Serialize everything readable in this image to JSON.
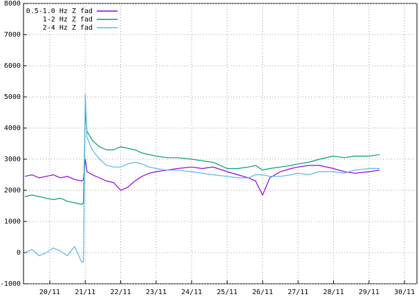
{
  "chart_data": {
    "type": "line",
    "x": [
      19.3,
      19.5,
      19.7,
      19.9,
      20.1,
      20.3,
      20.5,
      20.7,
      20.9,
      20.95,
      21.0,
      21.05,
      21.2,
      21.4,
      21.6,
      21.8,
      22.0,
      22.2,
      22.4,
      22.6,
      22.8,
      23.0,
      23.3,
      23.6,
      24.0,
      24.3,
      24.6,
      25.0,
      25.3,
      25.6,
      25.8,
      26.0,
      26.2,
      26.5,
      26.8,
      27.0,
      27.3,
      27.6,
      28.0,
      28.3,
      28.6,
      29.0,
      29.3
    ],
    "series": [
      {
        "name": "0.5-1.0 Hz Z fad",
        "color": "#9400d3",
        "values": [
          2450,
          2500,
          2400,
          2450,
          2500,
          2400,
          2450,
          2350,
          2300,
          2350,
          3000,
          2600,
          2500,
          2400,
          2300,
          2250,
          2000,
          2100,
          2300,
          2450,
          2550,
          2600,
          2650,
          2700,
          2750,
          2700,
          2750,
          2600,
          2500,
          2400,
          2300,
          1850,
          2400,
          2600,
          2700,
          2750,
          2800,
          2800,
          2700,
          2600,
          2550,
          2600,
          2650
        ]
      },
      {
        "name": "1-2 Hz Z fad",
        "color": "#009e73",
        "values": [
          1800,
          1850,
          1800,
          1750,
          1700,
          1750,
          1650,
          1600,
          1550,
          1600,
          4500,
          3900,
          3600,
          3400,
          3300,
          3300,
          3400,
          3350,
          3300,
          3200,
          3150,
          3100,
          3050,
          3050,
          3000,
          2950,
          2900,
          2700,
          2700,
          2750,
          2800,
          2650,
          2700,
          2750,
          2800,
          2850,
          2900,
          3000,
          3100,
          3050,
          3100,
          3100,
          3150
        ]
      },
      {
        "name": "2-4 Hz Z fad",
        "color": "#56b4e9",
        "values": [
          0,
          100,
          -100,
          0,
          150,
          50,
          -100,
          200,
          -300,
          -300,
          5100,
          3700,
          3300,
          3000,
          2800,
          2750,
          2750,
          2850,
          2900,
          2850,
          2750,
          2700,
          2650,
          2650,
          2600,
          2550,
          2500,
          2450,
          2400,
          2400,
          2500,
          2500,
          2450,
          2450,
          2500,
          2550,
          2500,
          2600,
          2600,
          2550,
          2650,
          2700,
          2700
        ]
      }
    ],
    "xlim": [
      19.26,
      30.35
    ],
    "xticks": [
      {
        "value": 20,
        "label": "20/11"
      },
      {
        "value": 21,
        "label": "21/11"
      },
      {
        "value": 22,
        "label": "22/11"
      },
      {
        "value": 23,
        "label": "23/11"
      },
      {
        "value": 24,
        "label": "24/11"
      },
      {
        "value": 25,
        "label": "25/11"
      },
      {
        "value": 26,
        "label": "26/11"
      },
      {
        "value": 27,
        "label": "27/11"
      },
      {
        "value": 28,
        "label": "28/11"
      },
      {
        "value": 29,
        "label": "29/11"
      },
      {
        "value": 30,
        "label": "30/11"
      }
    ],
    "ylim": [
      -1000,
      8000
    ],
    "yticks": [
      -1000,
      0,
      1000,
      2000,
      3000,
      4000,
      5000,
      6000,
      7000,
      8000
    ],
    "grid": true,
    "legend": "top-left"
  }
}
